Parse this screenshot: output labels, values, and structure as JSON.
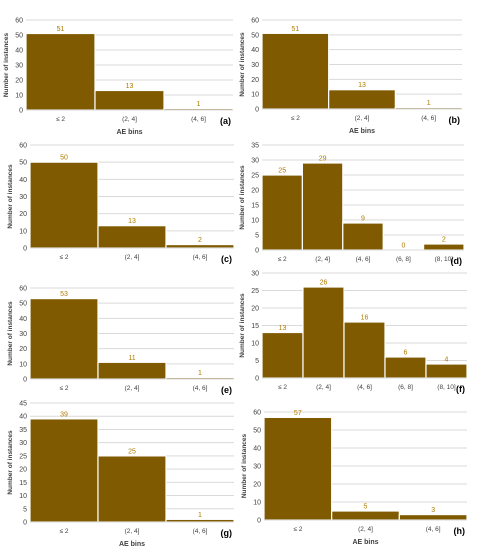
{
  "colors": {
    "bar": "#7f5a00",
    "bar_stroke": "#ffffff",
    "label": "#b07a00",
    "axis_text": "#404040",
    "grid": "#d9d9d9"
  },
  "chart_data": [
    {
      "type": "bar",
      "panel_label": "(a)",
      "categories": [
        "≤ 2",
        "(2, 4]",
        "(4, 6]"
      ],
      "values": [
        51,
        13,
        1
      ],
      "ylim": [
        0,
        60
      ],
      "yticks": [
        0,
        10,
        20,
        30,
        40,
        50,
        60
      ],
      "xlabel": "AE bins",
      "ylabel": "Number of instances",
      "grid": true
    },
    {
      "type": "bar",
      "panel_label": "(b)",
      "categories": [
        "≤ 2",
        "(2, 4]",
        "(4, 6]"
      ],
      "values": [
        51,
        13,
        1
      ],
      "ylim": [
        0,
        60
      ],
      "yticks": [
        0,
        10,
        20,
        30,
        40,
        50,
        60
      ],
      "xlabel": "AE bins",
      "ylabel": "Number of instances",
      "grid": true
    },
    {
      "type": "bar",
      "panel_label": "(c)",
      "categories": [
        "≤ 2",
        "(2, 4]",
        "(4, 6]"
      ],
      "values": [
        50,
        13,
        2
      ],
      "ylim": [
        0,
        60
      ],
      "yticks": [
        0,
        10,
        20,
        30,
        40,
        50,
        60
      ],
      "xlabel": "",
      "ylabel": "Number of instances",
      "grid": true
    },
    {
      "type": "bar",
      "panel_label": "(d)",
      "categories": [
        "≤ 2",
        "(2, 4]",
        "(4, 6]",
        "(6, 8]",
        "(8, 10]"
      ],
      "values": [
        25,
        29,
        9,
        0,
        2
      ],
      "ylim": [
        0,
        35
      ],
      "yticks": [
        0,
        5,
        10,
        15,
        20,
        25,
        30,
        35
      ],
      "xlabel": "",
      "ylabel": "Number of instances",
      "grid": true
    },
    {
      "type": "bar",
      "panel_label": "(e)",
      "categories": [
        "≤ 2",
        "(2, 4]",
        "(4, 6]"
      ],
      "values": [
        53,
        11,
        1
      ],
      "ylim": [
        0,
        60
      ],
      "yticks": [
        0,
        10,
        20,
        30,
        40,
        50,
        60
      ],
      "xlabel": "",
      "ylabel": "Number of instances",
      "grid": true
    },
    {
      "type": "bar",
      "panel_label": "(f)",
      "categories": [
        "≤ 2",
        "(2, 4]",
        "(4, 6]",
        "(6, 8]",
        "(8, 10]"
      ],
      "values": [
        13,
        26,
        16,
        6,
        4
      ],
      "ylim": [
        0,
        30
      ],
      "yticks": [
        0,
        5,
        10,
        15,
        20,
        25,
        30
      ],
      "xlabel": "",
      "ylabel": "Number of instances",
      "grid": true
    },
    {
      "type": "bar",
      "panel_label": "(g)",
      "categories": [
        "≤ 2",
        "(2, 4]",
        "(4, 6]"
      ],
      "values": [
        39,
        25,
        1
      ],
      "ylim": [
        0,
        45
      ],
      "yticks": [
        0,
        5,
        10,
        15,
        20,
        25,
        30,
        35,
        40,
        45
      ],
      "xlabel": "AE bins",
      "ylabel": "Number of instances",
      "grid": true
    },
    {
      "type": "bar",
      "panel_label": "(h)",
      "categories": [
        "≤ 2",
        "(2, 4]",
        "(4, 6]"
      ],
      "values": [
        57,
        5,
        3
      ],
      "ylim": [
        0,
        60
      ],
      "yticks": [
        0,
        10,
        20,
        30,
        40,
        50,
        60
      ],
      "xlabel": "AE bins",
      "ylabel": "Number of instances",
      "grid": true
    }
  ]
}
